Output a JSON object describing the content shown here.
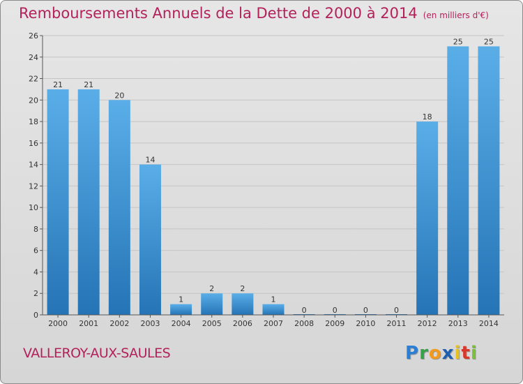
{
  "title": "Remboursements Annuels de la Dette de 2000 à 2014",
  "unit": "(en milliers d'€)",
  "commune": "VALLEROY-AUX-SAULES",
  "logo": {
    "text": "Proxiti"
  },
  "colors": {
    "title": "#b3215a",
    "bar_top": "#5aaee8",
    "bar_bottom": "#2574b6"
  },
  "chart_data": {
    "type": "bar",
    "categories": [
      "2000",
      "2001",
      "2002",
      "2003",
      "2004",
      "2005",
      "2006",
      "2007",
      "2008",
      "2009",
      "2010",
      "2011",
      "2012",
      "2013",
      "2014"
    ],
    "values": [
      21,
      21,
      20,
      14,
      1,
      2,
      2,
      1,
      0,
      0,
      0,
      0,
      18,
      25,
      25
    ],
    "title": "Remboursements Annuels de la Dette de 2000 à 2014",
    "xlabel": "",
    "ylabel": "",
    "ylim": [
      0,
      26
    ],
    "yticks": [
      0,
      2,
      4,
      6,
      8,
      10,
      12,
      14,
      16,
      18,
      20,
      22,
      24,
      26
    ],
    "grid": true
  }
}
